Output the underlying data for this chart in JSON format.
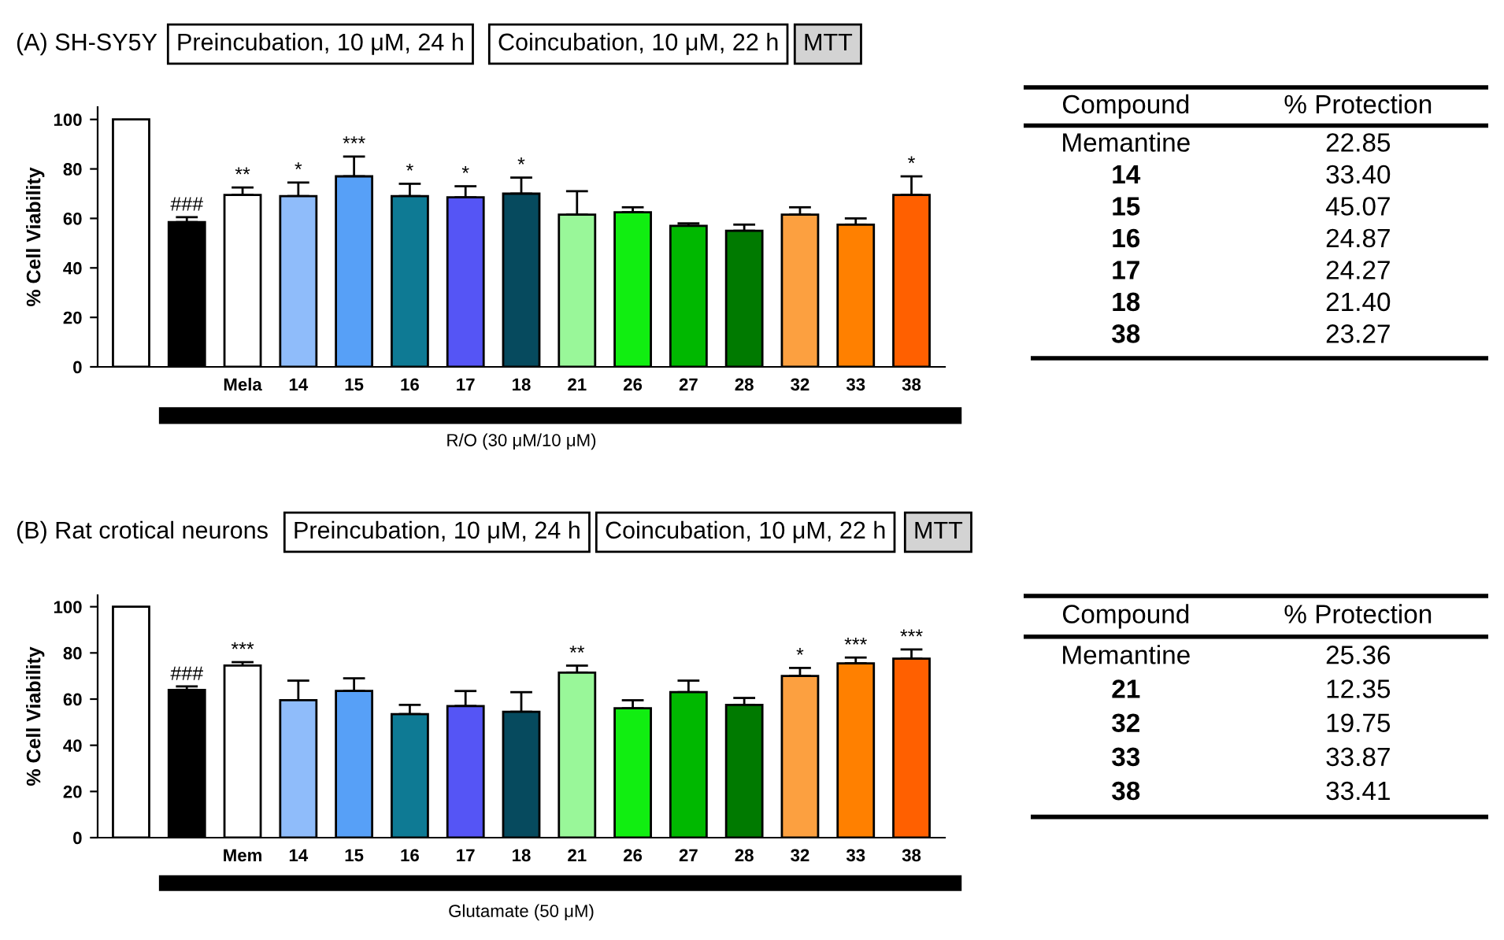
{
  "chart_data": [
    {
      "type": "bar",
      "title": "(A) SH-SY5Y",
      "ylabel": "% Cell Viability",
      "xlabel": "R/O (30 μM/10 μM)",
      "annotations": [
        "Preincubation, 10 μM, 24 h",
        "Coincubation, 10 μM, 22 h",
        "MTT"
      ],
      "categories": [
        null,
        null,
        "Mela",
        "14",
        "15",
        "16",
        "17",
        "18",
        "21",
        "26",
        "27",
        "28",
        "32",
        "33",
        "38"
      ],
      "values": [
        100,
        58.5,
        69.5,
        69,
        77,
        69,
        68.5,
        70,
        61.5,
        62.5,
        57,
        55,
        61.5,
        57.5,
        69.5
      ],
      "errors": [
        null,
        2,
        3,
        5.5,
        8,
        5,
        4.5,
        6.5,
        9.5,
        2,
        1,
        2.5,
        3,
        2.5,
        7.5
      ],
      "value_labels": [
        null,
        "###",
        "**",
        "*",
        "***",
        "*",
        "*",
        "*",
        null,
        null,
        null,
        null,
        null,
        null,
        "*"
      ],
      "colors": [
        "#ffffff",
        "#000000",
        "#ffffff",
        "#8fbcfa",
        "#57a0f7",
        "#0e7a94",
        "#5555f5",
        "#064a5e",
        "#99f799",
        "#11ee11",
        "#00b800",
        "#007a00",
        "#fca040",
        "#ff8000",
        "#ff6000"
      ],
      "ylim": [
        0,
        105
      ],
      "yticks": [
        0,
        20,
        40,
        60,
        80,
        100
      ],
      "grid": false
    },
    {
      "type": "other",
      "annotations": [
        "Compound",
        "% Protection"
      ],
      "categories": [
        "Memantine",
        "14",
        "15",
        "16",
        "17",
        "18",
        "38"
      ],
      "values": [
        22.85,
        33.4,
        45.07,
        24.87,
        24.27,
        21.4,
        23.27
      ],
      "value_labels": [
        "22.85",
        "33.40",
        "45.07",
        "24.87",
        "24.27",
        "21.40",
        "23.27"
      ]
    },
    {
      "type": "bar",
      "title": "(B) Rat crotical neurons",
      "ylabel": "% Cell Viability",
      "xlabel": "Glutamate (50 μM)",
      "annotations": [
        "Preincubation, 10 μM, 24 h",
        "Coincubation, 10 μM, 22 h",
        "MTT"
      ],
      "categories": [
        null,
        null,
        "Mem",
        "14",
        "15",
        "16",
        "17",
        "18",
        "21",
        "26",
        "27",
        "28",
        "32",
        "33",
        "38"
      ],
      "values": [
        100,
        64,
        74.5,
        59.5,
        63.5,
        53.5,
        57,
        54.5,
        71.5,
        56,
        63,
        57.5,
        70,
        75.5,
        77.5
      ],
      "errors": [
        null,
        1.5,
        1.5,
        8.5,
        5.5,
        4,
        6.5,
        8.5,
        3,
        3.5,
        5,
        3,
        3.5,
        2.5,
        4
      ],
      "value_labels": [
        null,
        "###",
        "***",
        null,
        null,
        null,
        null,
        null,
        "**",
        null,
        null,
        null,
        "*",
        "***",
        "***"
      ],
      "colors": [
        "#ffffff",
        "#000000",
        "#ffffff",
        "#8fbcfa",
        "#57a0f7",
        "#0e7a94",
        "#5555f5",
        "#064a5e",
        "#99f799",
        "#11ee11",
        "#00b800",
        "#007a00",
        "#fca040",
        "#ff8000",
        "#ff6000"
      ],
      "ylim": [
        0,
        105
      ],
      "yticks": [
        0,
        20,
        40,
        60,
        80,
        100
      ],
      "grid": false
    },
    {
      "type": "other",
      "annotations": [
        "Compound",
        "% Protection"
      ],
      "categories": [
        "Memantine",
        "21",
        "32",
        "33",
        "38"
      ],
      "values": [
        25.36,
        12.35,
        19.75,
        33.87,
        33.41
      ],
      "value_labels": [
        "25.36",
        "12.35",
        "19.75",
        "33.87",
        "33.41"
      ]
    }
  ]
}
